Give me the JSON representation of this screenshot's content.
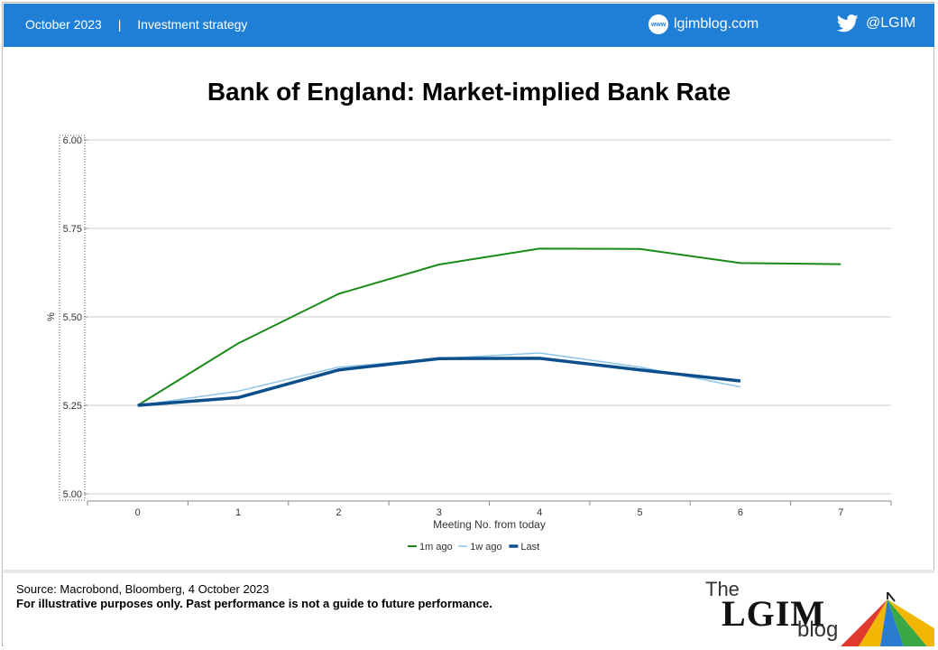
{
  "header": {
    "date": "October 2023",
    "separator": "|",
    "section": "Investment strategy",
    "site_icon": "www-globe-icon",
    "site_icon_text": "www",
    "site": "lgimblog.com",
    "social_icon": "twitter-bird-icon",
    "handle": "@LGIM",
    "color": "#1f7fd6"
  },
  "chart_data": {
    "type": "line",
    "title": "Bank of England: Market-implied Bank Rate",
    "xlabel": "Meeting No. from today",
    "ylabel": "%",
    "x": [
      0,
      1,
      2,
      3,
      4,
      5,
      6,
      7
    ],
    "x_tick_labels": [
      "0",
      "1",
      "2",
      "3",
      "4",
      "5",
      "6",
      "7"
    ],
    "y_tick_labels": [
      "5.00",
      "5.25",
      "5.50",
      "5.75",
      "6.00"
    ],
    "xlim": [
      -0.5,
      7.5
    ],
    "ylim": [
      5.0,
      6.0
    ],
    "grid": "horizontal",
    "legend_position": "bottom-center",
    "series": [
      {
        "name": "1m ago",
        "color": "#1a8a1a",
        "values": [
          5.25,
          5.425,
          5.565,
          5.648,
          5.693,
          5.692,
          5.652,
          5.649
        ]
      },
      {
        "name": "1w ago",
        "color": "#8ec5ea",
        "values": [
          5.25,
          5.29,
          5.358,
          5.382,
          5.398,
          5.358,
          5.302,
          null
        ]
      },
      {
        "name": "Last",
        "color": "#0d4f8c",
        "values": [
          5.25,
          5.272,
          5.35,
          5.382,
          5.383,
          5.35,
          5.319,
          null
        ]
      }
    ]
  },
  "footer": {
    "source": "Source: Macrobond, Bloomberg, 4 October 2023",
    "disclaimer": "For illustrative purposes only. Past performance is not a guide to future performance.",
    "logo_the": "The",
    "logo_lgim": "LGIM",
    "logo_blog": "blog"
  }
}
